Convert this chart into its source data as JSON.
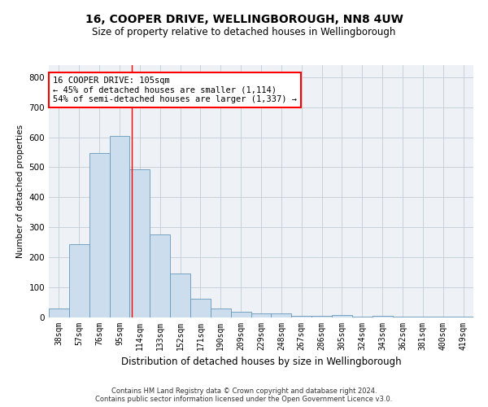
{
  "title_line1": "16, COOPER DRIVE, WELLINGBOROUGH, NN8 4UW",
  "title_line2": "Size of property relative to detached houses in Wellingborough",
  "xlabel": "Distribution of detached houses by size in Wellingborough",
  "ylabel": "Number of detached properties",
  "footer_line1": "Contains HM Land Registry data © Crown copyright and database right 2024.",
  "footer_line2": "Contains public sector information licensed under the Open Government Licence v3.0.",
  "bin_labels": [
    "38sqm",
    "57sqm",
    "76sqm",
    "95sqm",
    "114sqm",
    "133sqm",
    "152sqm",
    "171sqm",
    "190sqm",
    "209sqm",
    "229sqm",
    "248sqm",
    "267sqm",
    "286sqm",
    "305sqm",
    "324sqm",
    "343sqm",
    "362sqm",
    "381sqm",
    "400sqm",
    "419sqm"
  ],
  "values": [
    30,
    245,
    548,
    605,
    493,
    277,
    147,
    62,
    30,
    18,
    13,
    13,
    5,
    5,
    7,
    2,
    6,
    2,
    4,
    2,
    4
  ],
  "bar_color": "#ccdded",
  "bar_edge_color": "#6699bb",
  "grid_color": "#c8d0da",
  "background_color": "#eef2f7",
  "red_line_x": 3.62,
  "annotation_text_line1": "16 COOPER DRIVE: 105sqm",
  "annotation_text_line2": "← 45% of detached houses are smaller (1,114)",
  "annotation_text_line3": "54% of semi-detached houses are larger (1,337) →",
  "ylim": [
    0,
    840
  ],
  "yticks": [
    0,
    100,
    200,
    300,
    400,
    500,
    600,
    700,
    800
  ],
  "title_fontsize": 10,
  "subtitle_fontsize": 8.5,
  "ylabel_fontsize": 7.5,
  "xlabel_fontsize": 8.5,
  "tick_fontsize": 7,
  "annotation_fontsize": 7.5,
  "footer_fontsize": 6
}
